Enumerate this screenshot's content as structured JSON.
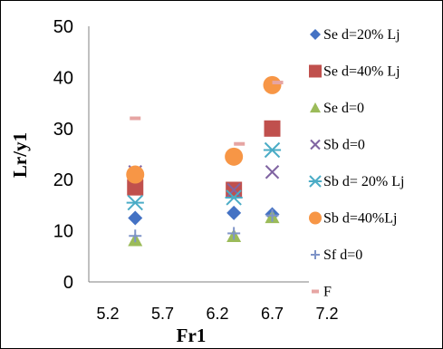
{
  "chart_data": {
    "type": "scatter",
    "title": "",
    "xlabel": "Fr1",
    "ylabel": "Lr/y1",
    "xlim": [
      5.2,
      7.2
    ],
    "ylim": [
      0,
      50
    ],
    "x_ticks": [
      "5.2",
      "5.7",
      "6.2",
      "6.7",
      "7.2"
    ],
    "y_ticks": [
      "0",
      "10",
      "20",
      "30",
      "40",
      "50"
    ],
    "grid": false,
    "legend_position": "right",
    "series": [
      {
        "name": "Se d=20% Lj",
        "marker": "diamond",
        "color": "#4472C4",
        "points": [
          {
            "x": 5.45,
            "y": 12.5
          },
          {
            "x": 6.35,
            "y": 13.5
          },
          {
            "x": 6.7,
            "y": 13.2
          }
        ]
      },
      {
        "name": "Se d=40% Lj",
        "marker": "square",
        "color": "#C0504D",
        "points": [
          {
            "x": 5.45,
            "y": 18.5
          },
          {
            "x": 6.35,
            "y": 18.0
          },
          {
            "x": 6.7,
            "y": 30.0
          }
        ]
      },
      {
        "name": "Se d=0",
        "marker": "triangle",
        "color": "#9BBB59",
        "points": [
          {
            "x": 5.45,
            "y": 8.2
          },
          {
            "x": 6.35,
            "y": 9.0
          },
          {
            "x": 6.7,
            "y": 12.7
          }
        ]
      },
      {
        "name": "Sb d=0",
        "marker": "x",
        "color": "#8064A2",
        "points": [
          {
            "x": 5.45,
            "y": 21.5
          },
          {
            "x": 6.35,
            "y": 18.0
          },
          {
            "x": 6.7,
            "y": 21.5
          }
        ]
      },
      {
        "name": "Sb d= 20% Lj",
        "marker": "star",
        "color": "#4BACC6",
        "points": [
          {
            "x": 5.45,
            "y": 15.5
          },
          {
            "x": 6.35,
            "y": 16.5
          },
          {
            "x": 6.7,
            "y": 25.8
          }
        ]
      },
      {
        "name": "Sb d=40%Lj",
        "marker": "circle",
        "color": "#F79646",
        "points": [
          {
            "x": 5.45,
            "y": 21.0
          },
          {
            "x": 6.35,
            "y": 24.5
          },
          {
            "x": 6.7,
            "y": 38.5
          }
        ]
      },
      {
        "name": "Sf d=0",
        "marker": "plus",
        "color": "#7F94C8",
        "points": [
          {
            "x": 5.45,
            "y": 9.0
          },
          {
            "x": 6.35,
            "y": 9.5
          },
          {
            "x": 6.7,
            "y": 13.0
          }
        ]
      },
      {
        "name": "F",
        "marker": "dash",
        "color": "#E6A5A3",
        "points": [
          {
            "x": 5.45,
            "y": 32.0
          },
          {
            "x": 6.4,
            "y": 27.0
          },
          {
            "x": 6.75,
            "y": 39.0
          }
        ]
      }
    ]
  }
}
